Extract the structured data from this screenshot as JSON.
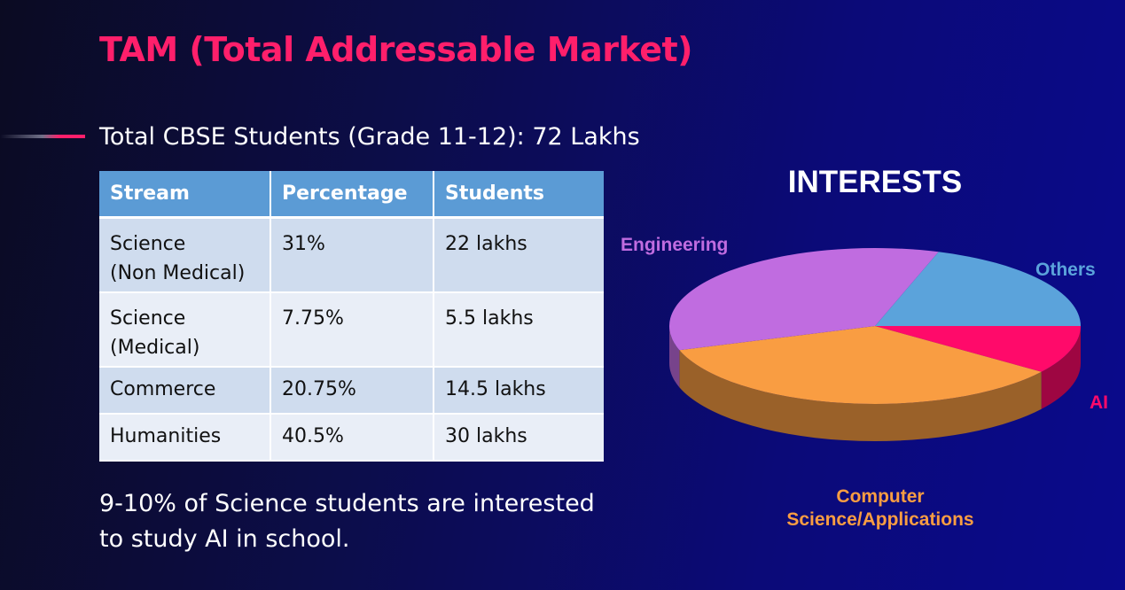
{
  "header": {
    "title": "TAM (Total Addressable Market)",
    "subtitle": "Total CBSE Students (Grade 11-12): 72 Lakhs"
  },
  "table": {
    "headers": [
      "Stream",
      "Percentage",
      "Students"
    ],
    "rows": [
      {
        "stream_line1": "Science",
        "stream_line2": "(Non Medical)",
        "percentage": "31%",
        "students": "22 lakhs"
      },
      {
        "stream_line1": "Science",
        "stream_line2": "(Medical)",
        "percentage": "7.75%",
        "students": "5.5 lakhs"
      },
      {
        "stream_line1": "Commerce",
        "stream_line2": "",
        "percentage": "20.75%",
        "students": "14.5 lakhs"
      },
      {
        "stream_line1": "Humanities",
        "stream_line2": "",
        "percentage": "40.5%",
        "students": "30 lakhs"
      }
    ]
  },
  "note": {
    "line1": "9-10% of Science students are interested",
    "line2": "to study AI in school."
  },
  "colors": {
    "title": "#ff1f6b",
    "table_header": "#5b9bd5",
    "engineering": "#c06ce0",
    "others": "#5ba3db",
    "ai": "#ff0a6a",
    "computer_science": "#f99d42"
  },
  "chart_data": {
    "type": "pie",
    "title": "INTERESTS",
    "style": "3d",
    "slices": [
      {
        "label": "Others",
        "value": 20,
        "color": "#5ba3db"
      },
      {
        "label": "AI",
        "value": 10,
        "color": "#ff0a6a"
      },
      {
        "label": "Computer Science/Applications",
        "label_line1": "Computer",
        "label_line2": "Science/Applications",
        "value": 35,
        "color": "#f99d42"
      },
      {
        "label": "Engineering",
        "value": 35,
        "color": "#c06ce0"
      }
    ],
    "start_angle_deg": -72,
    "legend": "labels-outside"
  }
}
